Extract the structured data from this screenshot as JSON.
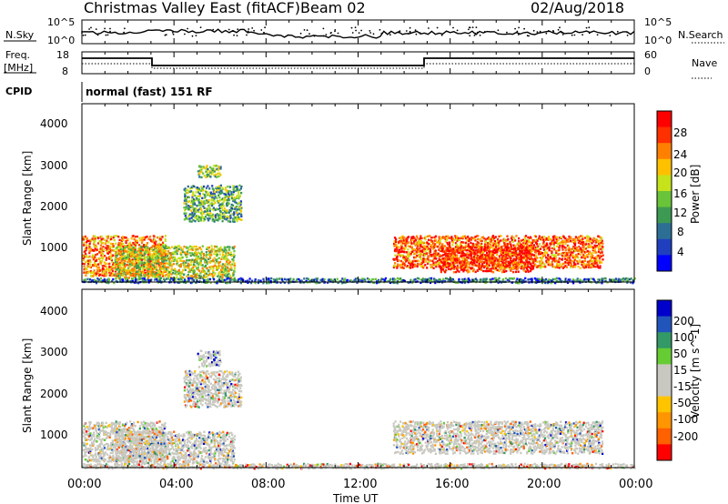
{
  "header": {
    "title": "Christmas Valley East (fitACF)",
    "beam": "Beam 02",
    "date": "02/Aug/2018"
  },
  "status_panels": {
    "nsky_label": "N.Sky",
    "nsky_ticks": [
      "10^5",
      "10^0"
    ],
    "nsearch_label": "N.Search",
    "nsearch_ticks": [
      "10^5",
      "10^0"
    ],
    "freq_label": "Freq.",
    "freq_unit": "[MHz]",
    "freq_ticks": [
      "18",
      "8"
    ],
    "nave_label": "Nave",
    "nave_ticks": [
      "60",
      "0"
    ],
    "cpid_label": "CPID",
    "cpid_value": "normal (fast) 151 RF"
  },
  "x_axis": {
    "label": "Time UT",
    "ticks": [
      "00:00",
      "04:00",
      "08:00",
      "12:00",
      "16:00",
      "20:00",
      "00:00"
    ]
  },
  "colors": {
    "power_scale": [
      "#0000ff",
      "#1f3fbf",
      "#2d6e95",
      "#3d9a52",
      "#6ac43a",
      "#c6e21a",
      "#ffc000",
      "#ff8000",
      "#ff3000",
      "#ff0000"
    ],
    "velocity_scale": [
      "#ff0000",
      "#ff6000",
      "#ff9500",
      "#ffc300",
      "#c8c8c0",
      "#c8c8c0",
      "#66cc33",
      "#339966",
      "#2255bb",
      "#0000cc"
    ]
  },
  "chart_data": [
    {
      "type": "heatmap",
      "name": "power-panel",
      "ylabel": "Slant Range [km]",
      "yticks": [
        "4000",
        "3000",
        "2000",
        "1000"
      ],
      "ylim": [
        180,
        4600
      ],
      "xlim": [
        0,
        24
      ],
      "colorbar_label": "Power [dB]",
      "colorbar_ticks": [
        "28",
        "24",
        "20",
        "16",
        "12",
        "8",
        "4"
      ],
      "scatter_regions": [
        {
          "t0": 0.0,
          "t1": 3.6,
          "r0": 350,
          "r1": 1350,
          "level": 0.75
        },
        {
          "t0": 1.4,
          "t1": 6.6,
          "r0": 300,
          "r1": 1100,
          "level": 0.55
        },
        {
          "t0": 4.4,
          "t1": 6.9,
          "r0": 1700,
          "r1": 2600,
          "level": 0.4
        },
        {
          "t0": 5.0,
          "t1": 6.0,
          "r0": 2800,
          "r1": 3100,
          "level": 0.45
        },
        {
          "t0": 13.5,
          "t1": 22.6,
          "r0": 550,
          "r1": 1350,
          "level": 0.8
        },
        {
          "t0": 15.5,
          "t1": 19.6,
          "r0": 450,
          "r1": 1100,
          "level": 0.9
        },
        {
          "t0": 0.0,
          "t1": 24.0,
          "r0": 180,
          "r1": 300,
          "level": 0.25
        }
      ]
    },
    {
      "type": "heatmap",
      "name": "velocity-panel",
      "ylabel": "Slant Range [km]",
      "yticks": [
        "4000",
        "3000",
        "2000",
        "1000"
      ],
      "ylim": [
        180,
        4600
      ],
      "xlim": [
        0,
        24
      ],
      "colorbar_label": "Velocity [m s^-1]",
      "colorbar_ticks": [
        "200",
        "100",
        "50",
        "15",
        "-15",
        "-50",
        "-100",
        "-200"
      ],
      "scatter_regions": [
        {
          "t0": 0.0,
          "t1": 3.6,
          "r0": 350,
          "r1": 1350,
          "level": 0.5
        },
        {
          "t0": 1.4,
          "t1": 6.6,
          "r0": 300,
          "r1": 1100,
          "level": 0.5
        },
        {
          "t0": 4.4,
          "t1": 6.9,
          "r0": 1700,
          "r1": 2600,
          "level": 0.5
        },
        {
          "t0": 5.0,
          "t1": 6.0,
          "r0": 2700,
          "r1": 3100,
          "level": 0.95
        },
        {
          "t0": 13.5,
          "t1": 22.6,
          "r0": 550,
          "r1": 1350,
          "level": 0.5
        },
        {
          "t0": 0.0,
          "t1": 24.0,
          "r0": 180,
          "r1": 300,
          "level": 0.3
        }
      ]
    }
  ]
}
